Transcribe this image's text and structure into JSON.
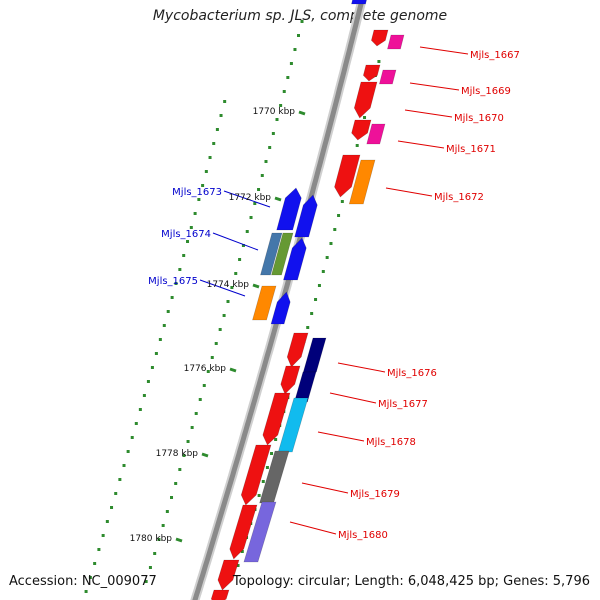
{
  "title": "Mycobacterium sp. JLS, complete genome",
  "footer": {
    "accession": "Accession: NC_009077",
    "stats": "Topology: circular; Length: 6,048,425 bp; Genes: 5,796"
  },
  "colors": {
    "backbone": "#8a8a8a",
    "tick_outer": "#2e8b2e",
    "tick_inner": "#2e8b2e",
    "label_forward": "#e00000",
    "label_reverse": "#0000cc",
    "red_gene": "#ee1111",
    "blue_gene": "#1111ee",
    "pink_gene": "#ee1199",
    "orange_gene": "#ff8800",
    "navy_gene": "#00007a",
    "cyan_gene": "#11bbee",
    "gray_gene": "#666666",
    "slate_gene": "#4477aa",
    "olive_gene": "#669933",
    "purple_gene": "#7766dd"
  },
  "scale_labels": [
    "1770 kbp",
    "1772 kbp",
    "1774 kbp",
    "1776 kbp",
    "1778 kbp",
    "1780 kbp"
  ],
  "gene_labels": {
    "right": [
      "Mjls_1667",
      "Mjls_1669",
      "Mjls_1670",
      "Mjls_1671",
      "Mjls_1672",
      "Mjls_1676",
      "Mjls_1677",
      "Mjls_1678",
      "Mjls_1679",
      "Mjls_1680"
    ],
    "left": [
      "Mjls_1673",
      "Mjls_1674",
      "Mjls_1675"
    ]
  }
}
